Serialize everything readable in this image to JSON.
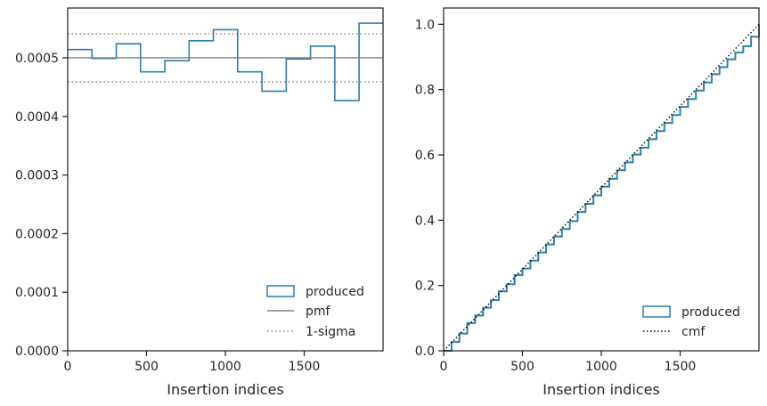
{
  "chart_data": [
    {
      "type": "step-histogram",
      "xlabel": "Insertion indices",
      "ylabel": "",
      "xlim": [
        0,
        2000
      ],
      "ylim": [
        0,
        0.000585
      ],
      "x_ticks": [
        0,
        500,
        1000,
        1500
      ],
      "x_tick_labels": [
        "0",
        "500",
        "1000",
        "1500"
      ],
      "y_ticks": [
        0,
        0.0001,
        0.0002,
        0.0003,
        0.0004,
        0.0005
      ],
      "y_tick_labels": [
        "0.0000",
        "0.0001",
        "0.0002",
        "0.0003",
        "0.0004",
        "0.0005"
      ],
      "bin_edges": [
        0,
        154,
        308,
        462,
        616,
        770,
        924,
        1078,
        1232,
        1386,
        1540,
        1694,
        1848,
        2000
      ],
      "series": [
        {
          "name": "produced",
          "kind": "step",
          "color": "#2e7fae",
          "values": [
            0.000514,
            0.000499,
            0.000524,
            0.000476,
            0.000495,
            0.000529,
            0.000548,
            0.000476,
            0.000443,
            0.000498,
            0.00052,
            0.000427,
            0.000559
          ]
        },
        {
          "name": "pmf",
          "kind": "hline",
          "color": "#808080",
          "value": 0.0005
        },
        {
          "name": "1-sigma",
          "kind": "hline-dotted",
          "color": "#808080",
          "values": [
            0.000541,
            0.000459
          ]
        }
      ],
      "legend": {
        "position": "lower-right",
        "entries": [
          "produced",
          "pmf",
          "1-sigma"
        ]
      }
    },
    {
      "type": "line",
      "xlabel": "Insertion indices",
      "ylabel": "",
      "xlim": [
        0,
        2000
      ],
      "ylim": [
        0,
        1.05
      ],
      "x_ticks": [
        0,
        500,
        1000,
        1500
      ],
      "x_tick_labels": [
        "0",
        "500",
        "1000",
        "1500"
      ],
      "y_ticks": [
        0,
        0.2,
        0.4,
        0.6,
        0.8,
        1.0
      ],
      "y_tick_labels": [
        "0.0",
        "0.2",
        "0.4",
        "0.6",
        "0.8",
        "1.0"
      ],
      "series": [
        {
          "name": "produced",
          "kind": "step-cumulative",
          "color": "#2e7fae",
          "x": [
            0,
            50,
            100,
            150,
            200,
            250,
            300,
            350,
            400,
            450,
            500,
            550,
            600,
            650,
            700,
            750,
            800,
            850,
            900,
            950,
            1000,
            1050,
            1100,
            1150,
            1200,
            1250,
            1300,
            1350,
            1400,
            1450,
            1500,
            1550,
            1600,
            1650,
            1700,
            1750,
            1800,
            1850,
            1900,
            1950,
            2000
          ],
          "y": [
            0,
            0.027,
            0.053,
            0.085,
            0.108,
            0.132,
            0.155,
            0.182,
            0.204,
            0.232,
            0.252,
            0.276,
            0.301,
            0.326,
            0.35,
            0.373,
            0.397,
            0.425,
            0.45,
            0.476,
            0.503,
            0.527,
            0.553,
            0.577,
            0.601,
            0.622,
            0.648,
            0.673,
            0.698,
            0.722,
            0.747,
            0.771,
            0.797,
            0.822,
            0.847,
            0.869,
            0.893,
            0.914,
            0.933,
            0.962,
            1.0
          ]
        },
        {
          "name": "cmf",
          "kind": "dotted-line",
          "color": "#000000",
          "x": [
            0,
            2000
          ],
          "y": [
            0,
            1.0
          ]
        }
      ],
      "legend": {
        "position": "lower-right",
        "entries": [
          "produced",
          "cmf"
        ]
      }
    }
  ]
}
